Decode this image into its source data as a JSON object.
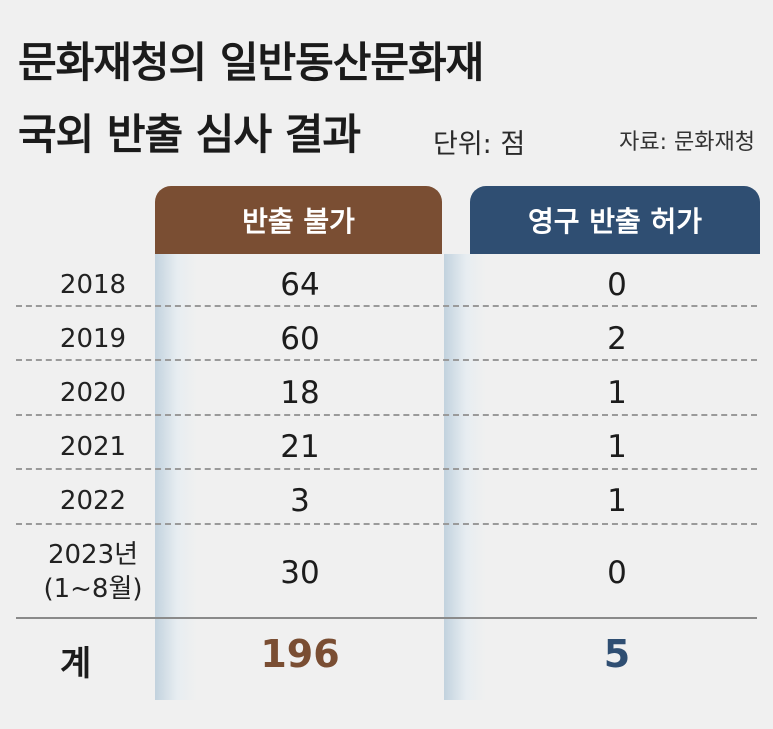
{
  "header": {
    "title_line1": "문화재청의 일반동산문화재",
    "title_line2": "국외 반출 심사 결과",
    "unit": "단위: 점",
    "source": "자료: 문화재청"
  },
  "chart_data": {
    "type": "table",
    "columns": [
      "반출 불가",
      "영구 반출 허가"
    ],
    "rows": [
      {
        "label": "2018",
        "sublabel": "",
        "values": [
          64,
          0
        ]
      },
      {
        "label": "2019",
        "sublabel": "",
        "values": [
          60,
          2
        ]
      },
      {
        "label": "2020",
        "sublabel": "",
        "values": [
          18,
          1
        ]
      },
      {
        "label": "2021",
        "sublabel": "",
        "values": [
          21,
          1
        ]
      },
      {
        "label": "2022",
        "sublabel": "",
        "values": [
          3,
          1
        ]
      },
      {
        "label": "2023년",
        "sublabel": "(1~8월)",
        "values": [
          30,
          0
        ]
      }
    ],
    "total": {
      "label": "계",
      "values": [
        196,
        5
      ]
    },
    "colors": {
      "col1": "#7a4e33",
      "col2": "#2f4e72"
    }
  }
}
